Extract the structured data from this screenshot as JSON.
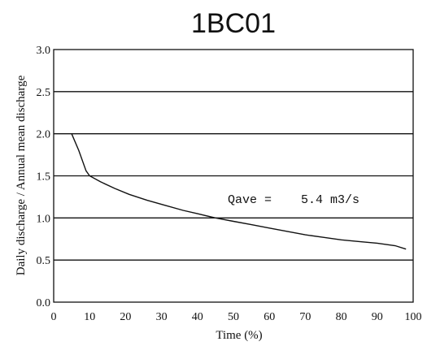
{
  "chart_data": {
    "type": "line",
    "title": "1BC01",
    "xlabel": "Time (%)",
    "ylabel": "Daily discharge / Annual mean discharge",
    "xlim": [
      0,
      100
    ],
    "ylim": [
      0,
      3.0
    ],
    "xticks": [
      "0",
      "10",
      "20",
      "30",
      "40",
      "50",
      "60",
      "70",
      "80",
      "90",
      "100"
    ],
    "yticks": [
      "0.0",
      "0.5",
      "1.0",
      "1.5",
      "2.0",
      "2.5",
      "3.0"
    ],
    "grid": "horizontal",
    "annotation": {
      "label": "Qave =",
      "value": "5.4 m3/s"
    },
    "series": [
      {
        "x": [
          5,
          7,
          9,
          10,
          13,
          17,
          21,
          26,
          31,
          36,
          40,
          45,
          50,
          55,
          60,
          65,
          70,
          75,
          80,
          85,
          90,
          95,
          98
        ],
        "y": [
          2.0,
          1.8,
          1.56,
          1.5,
          1.43,
          1.35,
          1.28,
          1.21,
          1.15,
          1.09,
          1.05,
          1.0,
          0.96,
          0.92,
          0.88,
          0.84,
          0.8,
          0.77,
          0.74,
          0.72,
          0.7,
          0.67,
          0.63
        ]
      }
    ]
  }
}
